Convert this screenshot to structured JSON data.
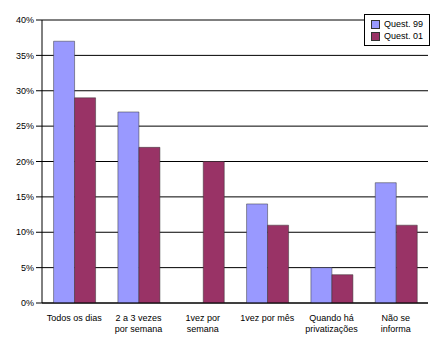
{
  "chart_data": {
    "type": "bar",
    "categories": [
      "Todos os dias",
      "2 a 3 vezes por semana",
      "1vez por semana",
      "1vez por mês",
      "Quando há privatizações",
      "Não se informa"
    ],
    "series": [
      {
        "name": "Quest. 99",
        "color": "#9999ff",
        "values": [
          37,
          27,
          null,
          14,
          5,
          17
        ]
      },
      {
        "name": "Quest. 01",
        "color": "#993366",
        "values": [
          29,
          22,
          20,
          11,
          4,
          11
        ]
      }
    ],
    "ylim": [
      0,
      40
    ],
    "yticks": [
      {
        "value": 0,
        "label": "0%"
      },
      {
        "value": 5,
        "label": "5%"
      },
      {
        "value": 10,
        "label": "10%"
      },
      {
        "value": 15,
        "label": "15%"
      },
      {
        "value": 20,
        "label": "20%"
      },
      {
        "value": 25,
        "label": "25%"
      },
      {
        "value": 30,
        "label": "30%"
      },
      {
        "value": 35,
        "label": "35%"
      },
      {
        "value": 40,
        "label": "40%"
      }
    ],
    "grid": true,
    "legend": "top-right"
  }
}
